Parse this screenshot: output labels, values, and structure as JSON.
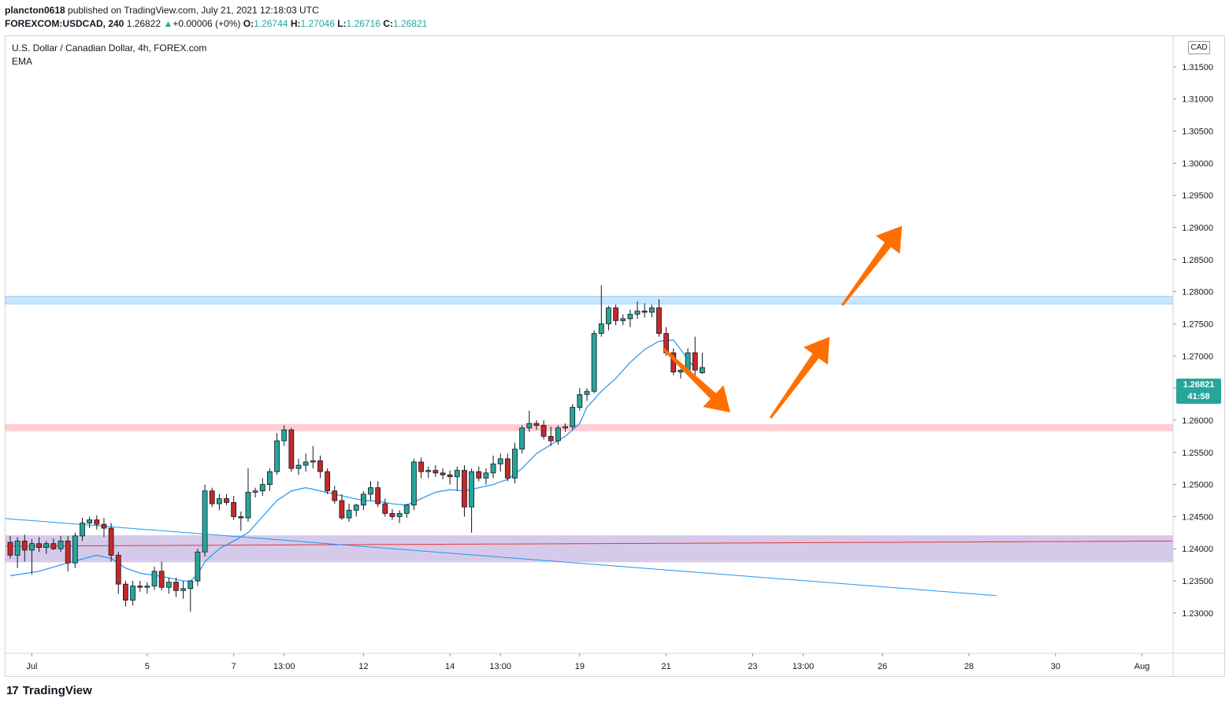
{
  "header": {
    "user": "plancton0618",
    "published": " published on TradingView.com, July 21, 2021 12:18:03 UTC",
    "symbol": "FOREXCOM:USDCAD, 240",
    "last": "1.26822",
    "change_arrow": "▲",
    "change": "+0.00006 (+0%)",
    "o_label": "O:",
    "o_val": "1.26744",
    "h_label": "H:",
    "h_val": "1.27046",
    "l_label": "L:",
    "l_val": "1.26716",
    "c_label": "C:",
    "c_val": "1.26821"
  },
  "legend": {
    "title": "U.S. Dollar / Canadian Dollar, 4h, FOREX.com",
    "indicator": "EMA"
  },
  "currency_badge": "CAD",
  "price_tag": {
    "price": "1.26821",
    "countdown": "41:58"
  },
  "footer": {
    "brand": "TradingView",
    "logo_glyph": "17"
  },
  "colors": {
    "up": "#26a69a",
    "down": "#c62828",
    "ema": "#2196f3",
    "resistance_zone": "#bbdefb",
    "support_zone_red": "#ffcdd2",
    "support_zone_purple": "#d1c4e9",
    "arrows": "#ff6f00"
  },
  "chart_data": {
    "type": "candlestick",
    "y_ticks": [
      "1.31500",
      "1.31000",
      "1.30500",
      "1.30000",
      "1.29500",
      "1.29000",
      "1.28500",
      "1.28000",
      "1.27500",
      "1.27000",
      "1.26500",
      "1.26000",
      "1.25500",
      "1.25000",
      "1.24500",
      "1.24000",
      "1.23500",
      "1.23000"
    ],
    "x_ticks": [
      {
        "label": "Jul",
        "idx": 3
      },
      {
        "label": "5",
        "idx": 19
      },
      {
        "label": "7",
        "idx": 31
      },
      {
        "label": "13:00",
        "idx": 38
      },
      {
        "label": "12",
        "idx": 49
      },
      {
        "label": "14",
        "idx": 61
      },
      {
        "label": "13:00",
        "idx": 68
      },
      {
        "label": "19",
        "idx": 79
      },
      {
        "label": "21",
        "idx": 91
      },
      {
        "label": "23",
        "idx": 103
      },
      {
        "label": "13:00",
        "idx": 110
      },
      {
        "label": "26",
        "idx": 121
      },
      {
        "label": "28",
        "idx": 133
      },
      {
        "label": "30",
        "idx": 145
      },
      {
        "label": "Aug",
        "idx": 157
      }
    ],
    "ylim": [
      1.2268,
      1.3178
    ],
    "candles": [
      [
        1.241,
        1.242,
        1.2385,
        1.239
      ],
      [
        1.239,
        1.2418,
        1.237,
        1.2412
      ],
      [
        1.2412,
        1.2422,
        1.238,
        1.2398
      ],
      [
        1.2398,
        1.2415,
        1.236,
        1.2408
      ],
      [
        1.2408,
        1.2418,
        1.2395,
        1.2402
      ],
      [
        1.2402,
        1.2412,
        1.2392,
        1.2408
      ],
      [
        1.2408,
        1.2416,
        1.2398,
        1.24
      ],
      [
        1.24,
        1.242,
        1.2395,
        1.2412
      ],
      [
        1.2412,
        1.242,
        1.2365,
        1.2378
      ],
      [
        1.2378,
        1.2425,
        1.237,
        1.242
      ],
      [
        1.242,
        1.2448,
        1.2412,
        1.244
      ],
      [
        1.244,
        1.245,
        1.2432,
        1.2445
      ],
      [
        1.2445,
        1.2452,
        1.243,
        1.2438
      ],
      [
        1.2438,
        1.2448,
        1.2418,
        1.2432
      ],
      [
        1.2432,
        1.244,
        1.238,
        1.239
      ],
      [
        1.239,
        1.2395,
        1.233,
        1.2345
      ],
      [
        1.2345,
        1.235,
        1.231,
        1.232
      ],
      [
        1.232,
        1.235,
        1.2312,
        1.2342
      ],
      [
        1.2342,
        1.235,
        1.2333,
        1.234
      ],
      [
        1.234,
        1.2348,
        1.233,
        1.2342
      ],
      [
        1.2342,
        1.2372,
        1.2336,
        1.2365
      ],
      [
        1.2365,
        1.238,
        1.2335,
        1.234
      ],
      [
        1.234,
        1.2355,
        1.233,
        1.2348
      ],
      [
        1.2348,
        1.2355,
        1.2325,
        1.2335
      ],
      [
        1.2335,
        1.235,
        1.2322,
        1.2338
      ],
      [
        1.2338,
        1.2345,
        1.2302,
        1.235
      ],
      [
        1.235,
        1.24,
        1.2342,
        1.2395
      ],
      [
        1.2395,
        1.25,
        1.2388,
        1.249
      ],
      [
        1.249,
        1.2495,
        1.2465,
        1.247
      ],
      [
        1.247,
        1.2485,
        1.246,
        1.2478
      ],
      [
        1.2478,
        1.2485,
        1.2468,
        1.2472
      ],
      [
        1.2472,
        1.2482,
        1.2445,
        1.245
      ],
      [
        1.245,
        1.2458,
        1.2428,
        1.2448
      ],
      [
        1.2448,
        1.2525,
        1.2442,
        1.2488
      ],
      [
        1.2488,
        1.2495,
        1.248,
        1.249
      ],
      [
        1.249,
        1.251,
        1.2482,
        1.25
      ],
      [
        1.25,
        1.2525,
        1.249,
        1.252
      ],
      [
        1.252,
        1.258,
        1.2515,
        1.2568
      ],
      [
        1.2568,
        1.2592,
        1.256,
        1.2585
      ],
      [
        1.2585,
        1.2588,
        1.252,
        1.2525
      ],
      [
        1.2525,
        1.254,
        1.2515,
        1.253
      ],
      [
        1.253,
        1.2548,
        1.252,
        1.2535
      ],
      [
        1.2535,
        1.256,
        1.2525,
        1.2537
      ],
      [
        1.2537,
        1.2545,
        1.251,
        1.252
      ],
      [
        1.252,
        1.2525,
        1.2485,
        1.249
      ],
      [
        1.249,
        1.2498,
        1.247,
        1.2475
      ],
      [
        1.2475,
        1.2485,
        1.2445,
        1.2448
      ],
      [
        1.2448,
        1.247,
        1.2442,
        1.246
      ],
      [
        1.246,
        1.247,
        1.245,
        1.2468
      ],
      [
        1.2468,
        1.249,
        1.246,
        1.2485
      ],
      [
        1.2485,
        1.2505,
        1.2475,
        1.2495
      ],
      [
        1.2495,
        1.2505,
        1.2465,
        1.247
      ],
      [
        1.247,
        1.2478,
        1.245,
        1.2455
      ],
      [
        1.2455,
        1.2462,
        1.2445,
        1.245
      ],
      [
        1.245,
        1.246,
        1.244,
        1.2455
      ],
      [
        1.2455,
        1.247,
        1.2448,
        1.2468
      ],
      [
        1.2468,
        1.254,
        1.246,
        1.2535
      ],
      [
        1.2535,
        1.2542,
        1.251,
        1.252
      ],
      [
        1.252,
        1.2528,
        1.251,
        1.2522
      ],
      [
        1.2522,
        1.253,
        1.2512,
        1.2518
      ],
      [
        1.2518,
        1.2525,
        1.2508,
        1.2515
      ],
      [
        1.2515,
        1.2522,
        1.25,
        1.2512
      ],
      [
        1.2512,
        1.2528,
        1.249,
        1.2522
      ],
      [
        1.2522,
        1.253,
        1.245,
        1.2465
      ],
      [
        1.2465,
        1.2525,
        1.2425,
        1.252
      ],
      [
        1.252,
        1.2528,
        1.2505,
        1.251
      ],
      [
        1.251,
        1.2525,
        1.25,
        1.2518
      ],
      [
        1.2518,
        1.2545,
        1.251,
        1.2532
      ],
      [
        1.2532,
        1.2548,
        1.252,
        1.254
      ],
      [
        1.254,
        1.2548,
        1.2505,
        1.251
      ],
      [
        1.251,
        1.2565,
        1.2502,
        1.2555
      ],
      [
        1.2555,
        1.2592,
        1.2548,
        1.2588
      ],
      [
        1.2588,
        1.2615,
        1.2582,
        1.2595
      ],
      [
        1.2595,
        1.26,
        1.2585,
        1.2592
      ],
      [
        1.2592,
        1.26,
        1.257,
        1.2575
      ],
      [
        1.2575,
        1.259,
        1.256,
        1.2568
      ],
      [
        1.2568,
        1.2592,
        1.2562,
        1.2588
      ],
      [
        1.2588,
        1.2595,
        1.2582,
        1.259
      ],
      [
        1.259,
        1.2625,
        1.2585,
        1.262
      ],
      [
        1.262,
        1.265,
        1.2615,
        1.264
      ],
      [
        1.264,
        1.265,
        1.263,
        1.2645
      ],
      [
        1.2645,
        1.274,
        1.2642,
        1.2735
      ],
      [
        1.2735,
        1.281,
        1.273,
        1.275
      ],
      [
        1.275,
        1.2778,
        1.274,
        1.2775
      ],
      [
        1.2775,
        1.278,
        1.2748,
        1.2755
      ],
      [
        1.2755,
        1.2765,
        1.2748,
        1.2758
      ],
      [
        1.2758,
        1.2772,
        1.2745,
        1.2765
      ],
      [
        1.2765,
        1.2785,
        1.2758,
        1.277
      ],
      [
        1.277,
        1.2782,
        1.276,
        1.2768
      ],
      [
        1.2768,
        1.278,
        1.276,
        1.2775
      ],
      [
        1.2775,
        1.2788,
        1.273,
        1.2735
      ],
      [
        1.2735,
        1.2745,
        1.27,
        1.2705
      ],
      [
        1.2705,
        1.2712,
        1.267,
        1.2675
      ],
      [
        1.2675,
        1.268,
        1.2665,
        1.2678
      ],
      [
        1.2678,
        1.2712,
        1.2672,
        1.2705
      ],
      [
        1.2705,
        1.273,
        1.2668,
        1.2678
      ],
      [
        1.2674,
        1.2705,
        1.2672,
        1.2682
      ]
    ],
    "ema": [
      [
        0,
        1.2358
      ],
      [
        4,
        1.2365
      ],
      [
        8,
        1.2378
      ],
      [
        12,
        1.239
      ],
      [
        14,
        1.2385
      ],
      [
        16,
        1.237
      ],
      [
        18,
        1.2362
      ],
      [
        21,
        1.2357
      ],
      [
        24,
        1.235
      ],
      [
        25,
        1.235
      ],
      [
        26,
        1.236
      ],
      [
        27,
        1.238
      ],
      [
        29,
        1.24
      ],
      [
        31,
        1.2412
      ],
      [
        33,
        1.2425
      ],
      [
        35,
        1.245
      ],
      [
        37,
        1.2475
      ],
      [
        39,
        1.249
      ],
      [
        41,
        1.2495
      ],
      [
        43,
        1.249
      ],
      [
        45,
        1.2485
      ],
      [
        47,
        1.248
      ],
      [
        49,
        1.2475
      ],
      [
        51,
        1.2474
      ],
      [
        53,
        1.247
      ],
      [
        55,
        1.2468
      ],
      [
        57,
        1.2478
      ],
      [
        59,
        1.2488
      ],
      [
        61,
        1.2492
      ],
      [
        63,
        1.249
      ],
      [
        65,
        1.2495
      ],
      [
        67,
        1.25
      ],
      [
        69,
        1.2508
      ],
      [
        71,
        1.2525
      ],
      [
        73,
        1.2548
      ],
      [
        75,
        1.2562
      ],
      [
        77,
        1.2575
      ],
      [
        79,
        1.2595
      ],
      [
        80,
        1.262
      ],
      [
        82,
        1.2645
      ],
      [
        84,
        1.2665
      ],
      [
        86,
        1.269
      ],
      [
        88,
        1.271
      ],
      [
        90,
        1.2723
      ],
      [
        92,
        1.2725
      ],
      [
        95,
        1.268
      ]
    ],
    "blue_trendline": [
      [
        0,
        1.2447
      ],
      [
        135,
        1.2327
      ]
    ],
    "red_line": [
      [
        0,
        1.2404
      ],
      [
        165,
        1.2412
      ]
    ],
    "zones": {
      "resistance": [
        1.2781,
        1.2793
      ],
      "red_support": [
        1.2583,
        1.2594
      ],
      "purple_support": [
        1.2379,
        1.2421
      ]
    }
  }
}
